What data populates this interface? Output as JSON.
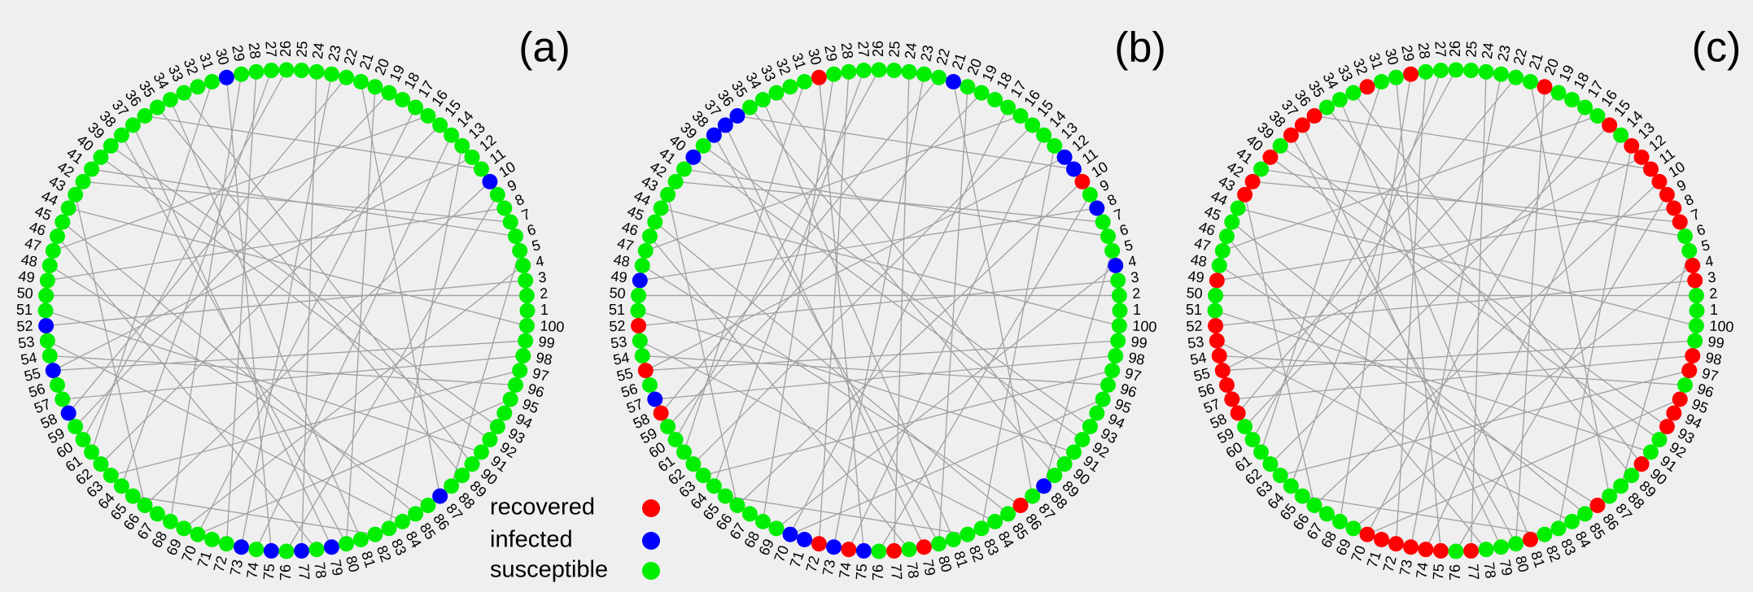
{
  "nodes": [
    1,
    2,
    3,
    4,
    5,
    6,
    7,
    8,
    9,
    10,
    11,
    12,
    13,
    14,
    15,
    16,
    17,
    18,
    19,
    20,
    21,
    22,
    23,
    24,
    25,
    26,
    27,
    28,
    29,
    30,
    31,
    32,
    33,
    34,
    35,
    36,
    37,
    38,
    39,
    40,
    41,
    42,
    43,
    44,
    45,
    46,
    47,
    48,
    49,
    50,
    51,
    52,
    53,
    54,
    55,
    56,
    57,
    58,
    59,
    60,
    61,
    62,
    63,
    64,
    65,
    66,
    67,
    68,
    69,
    70,
    71,
    72,
    73,
    74,
    75,
    76,
    77,
    78,
    79,
    80,
    81,
    82,
    83,
    84,
    85,
    86,
    87,
    88,
    89,
    90,
    91,
    92,
    93,
    94,
    95,
    96,
    97,
    98,
    99,
    100
  ],
  "edges": [
    [
      30,
      75
    ],
    [
      28,
      72
    ],
    [
      26,
      60
    ],
    [
      33,
      90
    ],
    [
      22,
      58
    ],
    [
      20,
      80
    ],
    [
      15,
      62
    ],
    [
      12,
      55
    ],
    [
      10,
      66
    ],
    [
      8,
      49
    ],
    [
      5,
      88
    ],
    [
      3,
      52
    ],
    [
      99,
      55
    ],
    [
      97,
      63
    ],
    [
      95,
      70
    ],
    [
      92,
      40
    ],
    [
      89,
      35
    ],
    [
      85,
      45
    ],
    [
      80,
      38
    ],
    [
      77,
      24
    ],
    [
      74,
      14
    ],
    [
      70,
      17
    ],
    [
      66,
      43
    ],
    [
      61,
      31
    ],
    [
      57,
      98
    ],
    [
      53,
      84
    ],
    [
      50,
      2
    ],
    [
      48,
      86
    ],
    [
      46,
      78
    ],
    [
      44,
      100
    ],
    [
      41,
      6
    ],
    [
      39,
      93
    ],
    [
      36,
      11
    ],
    [
      34,
      81
    ],
    [
      29,
      68
    ],
    [
      27,
      64
    ],
    [
      23,
      73
    ],
    [
      19,
      59
    ],
    [
      16,
      47
    ],
    [
      13,
      83
    ],
    [
      9,
      76
    ],
    [
      7,
      42
    ],
    [
      4,
      69
    ],
    [
      96,
      54
    ],
    [
      91,
      51
    ],
    [
      87,
      21
    ],
    [
      82,
      65
    ],
    [
      79,
      37
    ]
  ],
  "panels": [
    {
      "label": "(a)",
      "infected": [
        10,
        30,
        52,
        55,
        58,
        73,
        75,
        77,
        79,
        87
      ],
      "recovered": []
    },
    {
      "label": "(b)",
      "infected": [
        4,
        8,
        11,
        12,
        21,
        36,
        37,
        38,
        40,
        49,
        57,
        70,
        71,
        73,
        75,
        88
      ],
      "recovered": [
        10,
        30,
        52,
        55,
        58,
        72,
        74,
        77,
        79,
        86
      ]
    },
    {
      "label": "(c)",
      "infected": [],
      "recovered": [
        3,
        4,
        7,
        8,
        9,
        10,
        11,
        12,
        13,
        15,
        20,
        29,
        32,
        36,
        37,
        38,
        40,
        42,
        43,
        49,
        52,
        53,
        54,
        55,
        56,
        57,
        58,
        70,
        71,
        72,
        73,
        74,
        75,
        77,
        81,
        86,
        90,
        93,
        94,
        95,
        97,
        98
      ]
    }
  ],
  "legend": [
    {
      "label": "recovered",
      "color": "#ff0000"
    },
    {
      "label": "infected",
      "color": "#0000ff"
    },
    {
      "label": "susceptible",
      "color": "#00ee00"
    }
  ]
}
